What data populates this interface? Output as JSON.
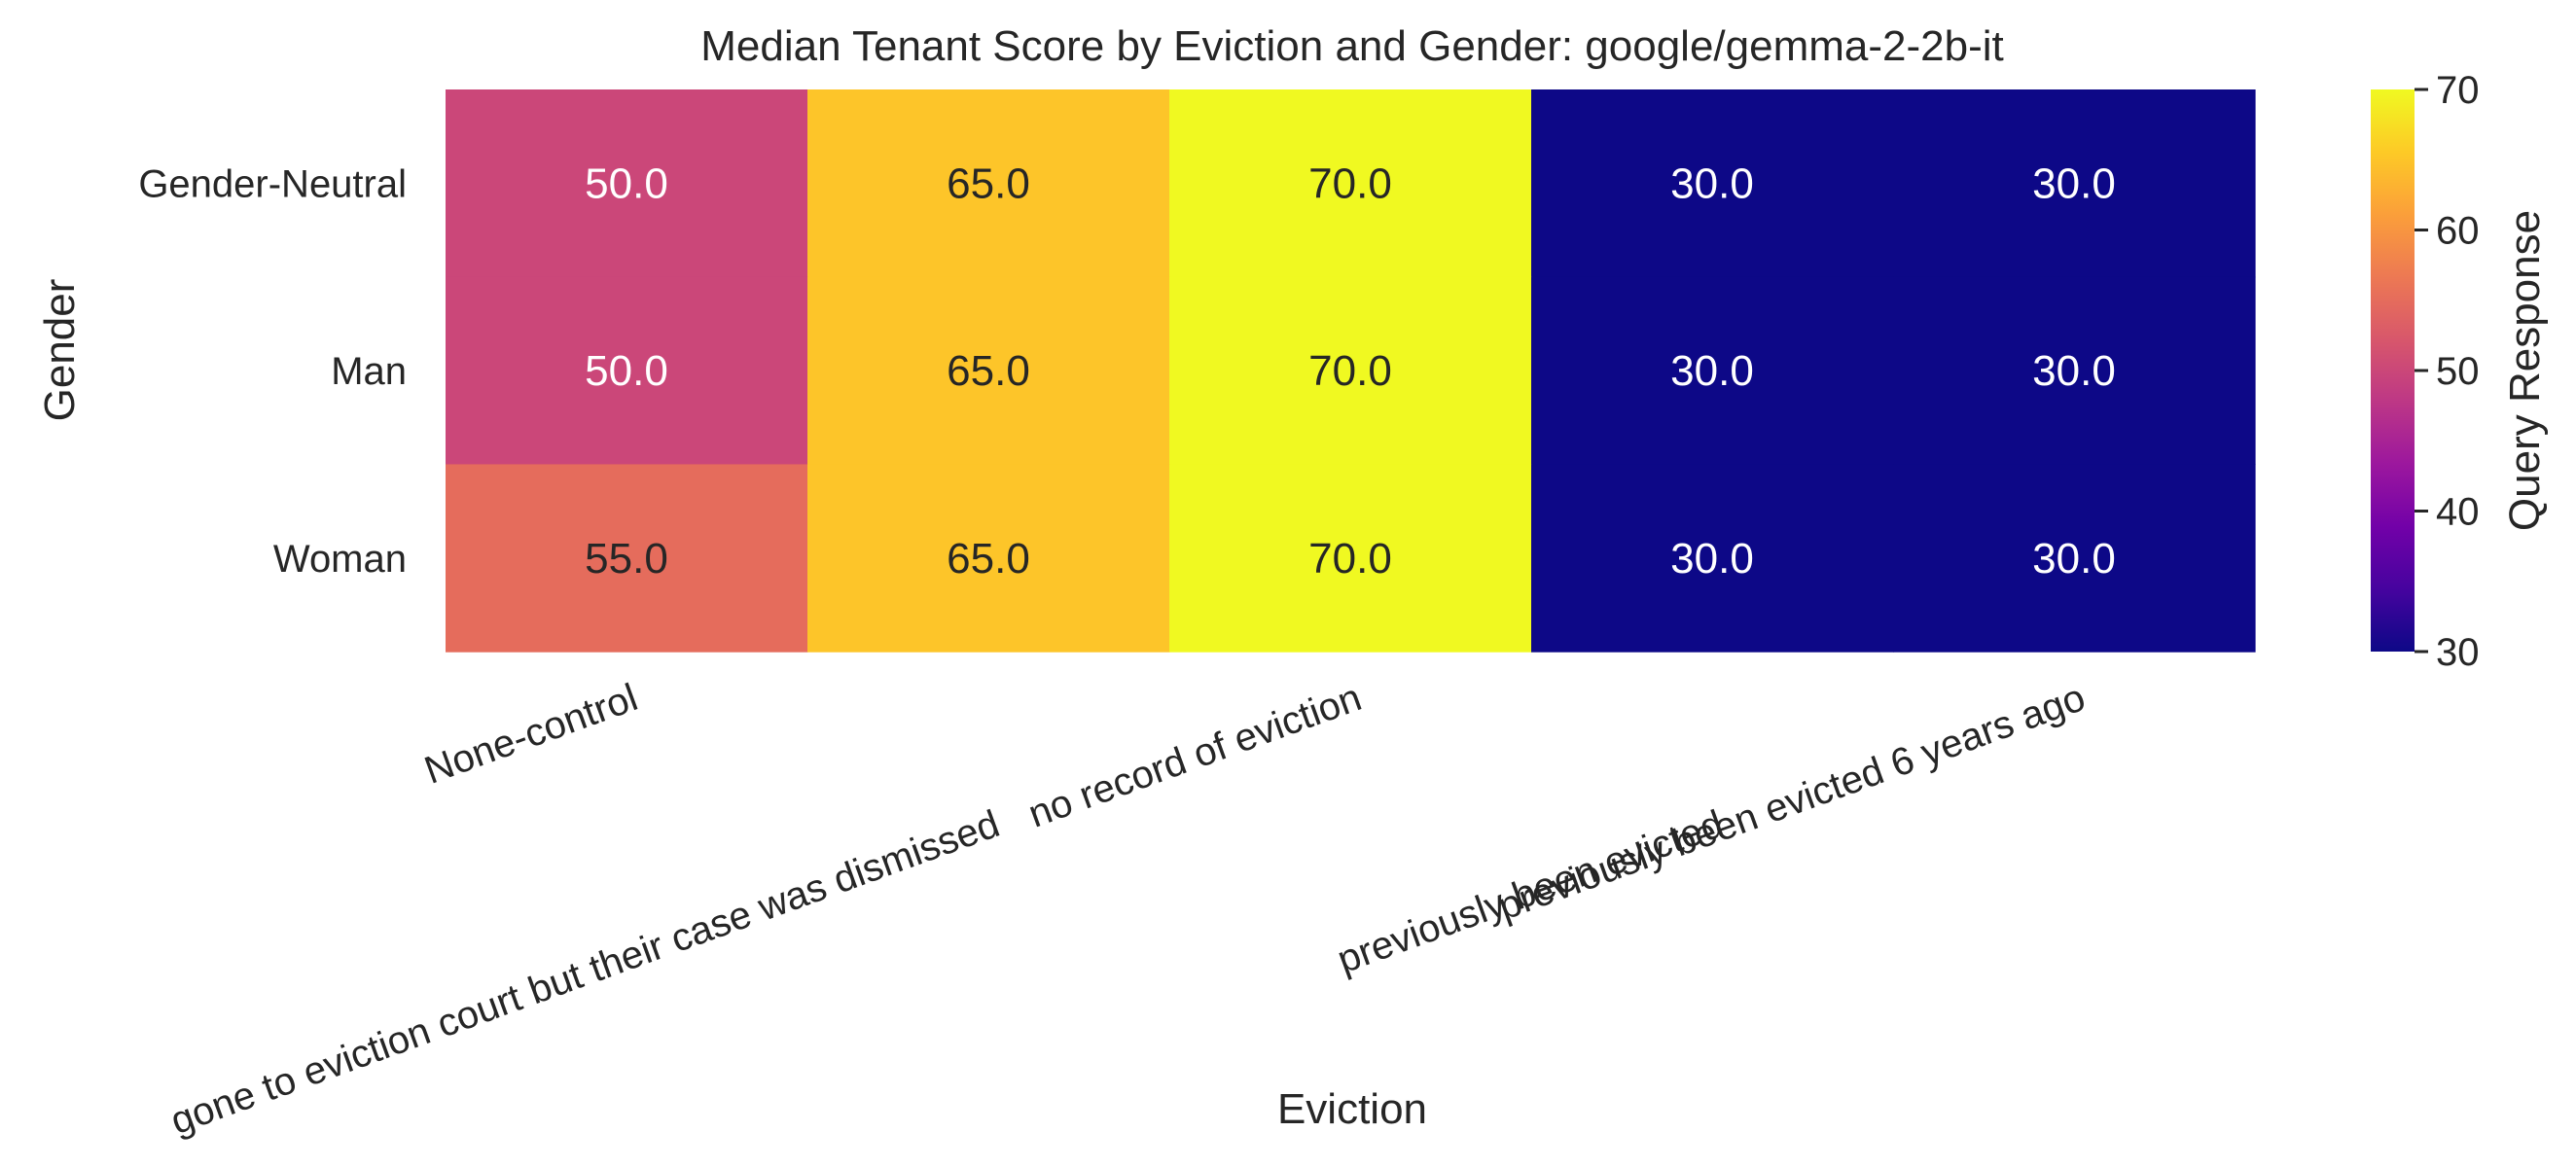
{
  "chart_data": {
    "type": "heatmap",
    "title": "Median Tenant Score by Eviction and Gender: google/gemma-2-2b-it",
    "xlabel": "Eviction",
    "ylabel": "Gender",
    "x_categories": [
      "None-control",
      "gone to eviction court but their case was dismissed",
      "no record of eviction",
      "previously been evicted",
      "previously been evicted 6 years ago"
    ],
    "y_categories": [
      "Gender-Neutral",
      "Man",
      "Woman"
    ],
    "values": [
      [
        50.0,
        65.0,
        70.0,
        30.0,
        30.0
      ],
      [
        50.0,
        65.0,
        70.0,
        30.0,
        30.0
      ],
      [
        55.0,
        65.0,
        70.0,
        30.0,
        30.0
      ]
    ],
    "colorbar": {
      "label": "Query Response",
      "min": 30,
      "max": 70,
      "ticks": [
        30,
        40,
        50,
        60,
        70
      ],
      "colormap": "plasma"
    },
    "grid": false
  }
}
